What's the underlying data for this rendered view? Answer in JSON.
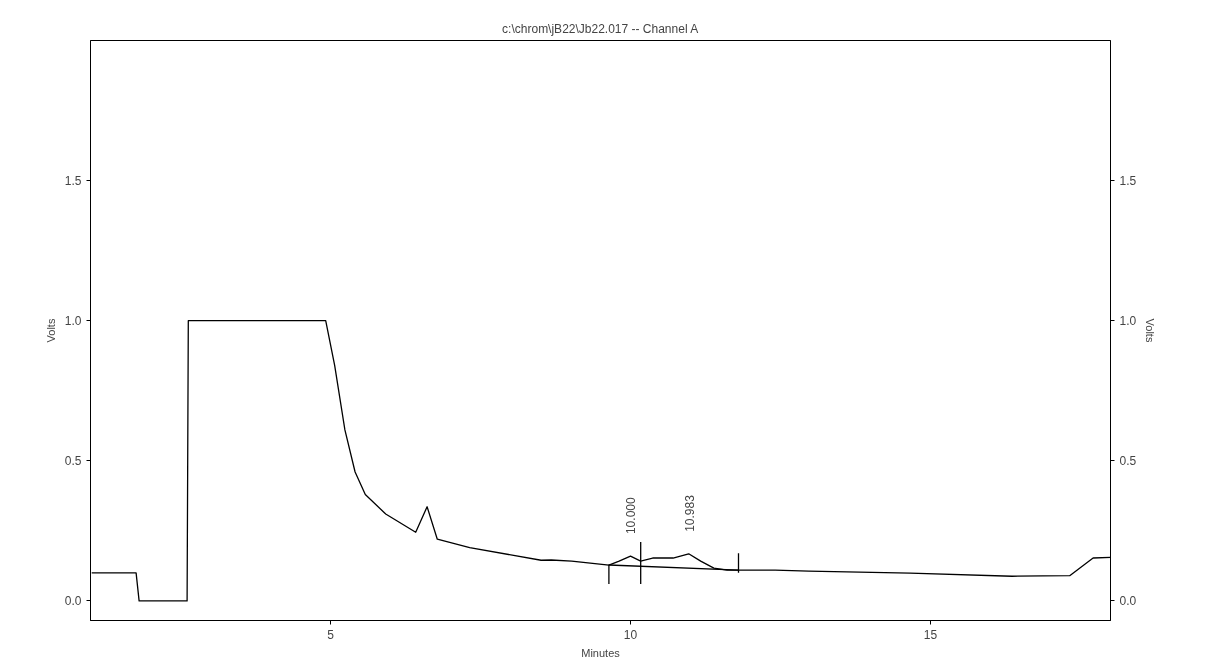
{
  "chart_data": {
    "type": "line",
    "title": "c:\\chrom\\jB22\\Jb22.017 -- Channel A",
    "xlabel": "Minutes",
    "ylabel": "Volts",
    "y2label": "Volts",
    "xlim": [
      1.0,
      18.0
    ],
    "xticks": [
      5,
      10,
      15
    ],
    "ylim": [
      -0.07,
      2.0
    ],
    "yticks": [
      {
        "value": 0,
        "label": "0.0"
      },
      {
        "value": 0.5,
        "label": "0.5"
      },
      {
        "value": 1,
        "label": "1.0"
      },
      {
        "value": 1.5,
        "label": "1.5"
      }
    ],
    "y2lim": [
      -0.07,
      2.0
    ],
    "y2ticks": [
      {
        "value": 0,
        "label": "0.0"
      },
      {
        "value": 0.5,
        "label": "0.5"
      },
      {
        "value": 1,
        "label": "1.0"
      },
      {
        "value": 1.5,
        "label": "1.5"
      }
    ],
    "grid": false,
    "marker": "none",
    "line_style": "solid",
    "series": [
      {
        "color": "#000000",
        "x": [
          1.02,
          1.76,
          1.81,
          2.61,
          2.63,
          4.92,
          5.07,
          5.24,
          5.41,
          5.58,
          5.92,
          6.42,
          6.61,
          6.78,
          7.32,
          8.51,
          8.68,
          9.02,
          9.64,
          9.81,
          10.0,
          10.17,
          10.37,
          10.71,
          10.97,
          11.17,
          11.39,
          11.61,
          12.41,
          12.97,
          14.66,
          16.36,
          17.32,
          17.71,
          18.0
        ],
        "values": [
          0.1,
          0.1,
          0.0,
          0.0,
          1.0,
          1.0,
          0.84,
          0.61,
          0.46,
          0.38,
          0.31,
          0.245,
          0.336,
          0.22,
          0.19,
          0.145,
          0.146,
          0.142,
          0.128,
          0.142,
          0.16,
          0.142,
          0.153,
          0.153,
          0.168,
          0.142,
          0.117,
          0.11,
          0.11,
          0.106,
          0.099,
          0.088,
          0.09,
          0.153,
          0.155
        ]
      },
      {
        "color": "#000000",
        "x": [
          9.64,
          11.8
        ],
        "values": [
          0.128,
          0.11
        ]
      },
      {
        "color": "#000000",
        "x": [
          9.64,
          9.64,
          null,
          10.17,
          10.17,
          null,
          11.8,
          11.8
        ],
        "values": [
          0.06,
          0.13,
          null,
          0.06,
          0.21,
          null,
          0.1,
          0.17
        ]
      }
    ],
    "annotations": [
      {
        "text": "10.000",
        "x": 10.0,
        "y": 0.16
      },
      {
        "text": "10.983",
        "x": 10.983,
        "y": 0.168
      }
    ]
  }
}
